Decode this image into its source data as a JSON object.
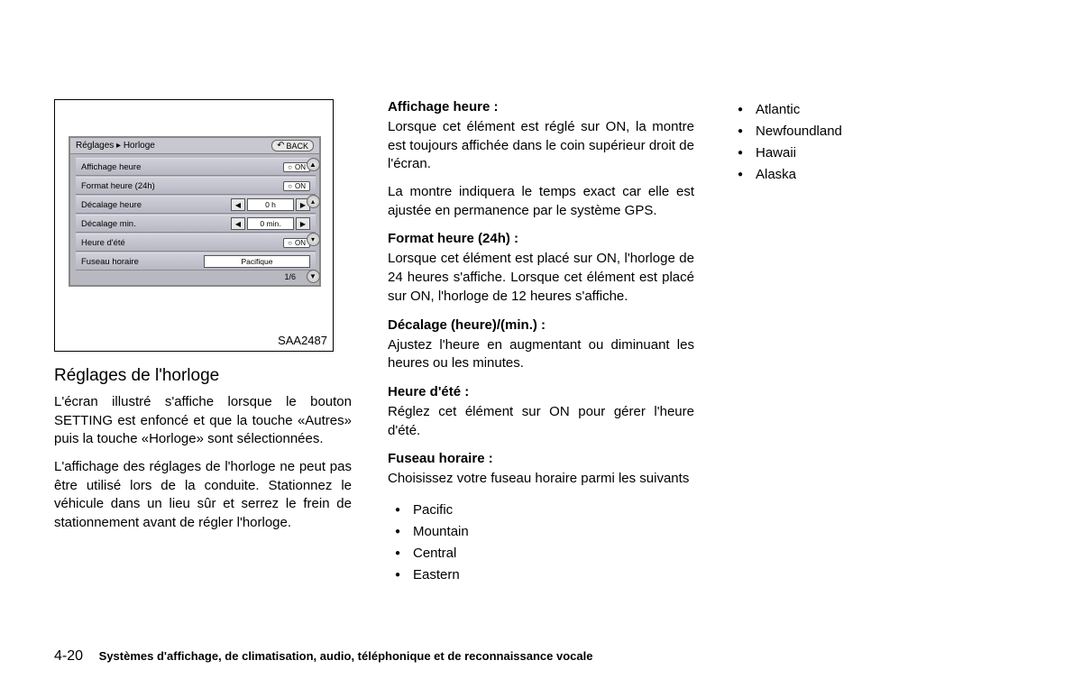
{
  "figure": {
    "breadcrumb": "Réglages ▸ Horloge",
    "back_label": "BACK",
    "rows": {
      "display_time": {
        "label": "Affichage heure",
        "value": "ON"
      },
      "format_24h": {
        "label": "Format heure (24h)",
        "value": "ON"
      },
      "offset_hour": {
        "label": "Décalage heure",
        "value": "0 h"
      },
      "offset_min": {
        "label": "Décalage min.",
        "value": "0 min."
      },
      "dst": {
        "label": "Heure d'été",
        "value": "ON"
      },
      "timezone": {
        "label": "Fuseau horaire",
        "value": "Pacifique"
      }
    },
    "pager": "1/6",
    "code": "SAA2487"
  },
  "col1": {
    "heading": "Réglages de l'horloge",
    "p1": "L'écran illustré s'affiche lorsque le bouton SETTING est enfoncé et que la touche «Autres» puis la touche «Horloge» sont sélectionnées.",
    "p2": "L'affichage des réglages de l'horloge ne peut pas être utilisé lors de la conduite. Stationnez le véhicule dans un lieu sûr et serrez le frein de stationnement avant de régler l'horloge."
  },
  "col2": {
    "s1": {
      "title": "Affichage heure :",
      "p1": "Lorsque cet élément est réglé sur ON, la montre est toujours affichée dans le coin supérieur droit de l'écran.",
      "p2": "La montre indiquera le temps exact car elle est ajustée en permanence par le système GPS."
    },
    "s2": {
      "title": "Format heure (24h) :",
      "p1": "Lorsque cet élément est placé sur ON, l'horloge de 24 heures s'affiche. Lorsque cet élément est placé sur ON, l'horloge de 12 heures s'affiche."
    },
    "s3": {
      "title": "Décalage (heure)/(min.) :",
      "p1": "Ajustez l'heure en augmentant ou diminuant les heures ou les minutes."
    },
    "s4": {
      "title": "Heure d'été :",
      "p1": "Réglez cet élément sur ON pour gérer l'heure d'été."
    },
    "s5": {
      "title": "Fuseau horaire :",
      "p1": "Choisissez votre fuseau horaire parmi les suivants"
    },
    "tz_a": [
      "Pacific",
      "Mountain",
      "Central",
      "Eastern"
    ]
  },
  "col3": {
    "tz_b": [
      "Atlantic",
      "Newfoundland",
      "Hawaii",
      "Alaska"
    ]
  },
  "footer": {
    "page_number": "4-20",
    "title": "Systèmes d'affichage, de climatisation, audio, téléphonique et de reconnaissance vocale"
  }
}
